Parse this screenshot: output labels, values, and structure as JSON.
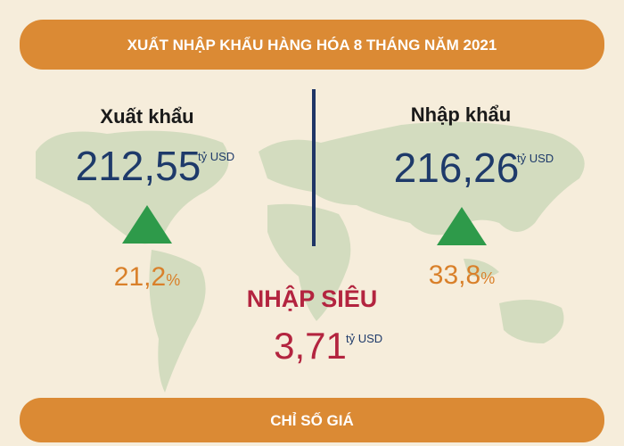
{
  "header": {
    "title": "XUẤT NHẬP KHẨU HÀNG HÓA  8 THÁNG NĂM 2021"
  },
  "export": {
    "label": "Xuất khẩu",
    "value": "212,55",
    "unit": "tỷ USD",
    "growth": "21,2",
    "growth_unit": "%"
  },
  "import": {
    "label": "Nhập khẩu",
    "value": "216,26",
    "unit": "tỷ USD",
    "growth": "33,8",
    "growth_unit": "%"
  },
  "deficit": {
    "label": "NHẬP SIÊU",
    "value": "3,71",
    "unit": "tỷ USD"
  },
  "footer": {
    "title": "CHỈ SỐ GIÁ"
  }
}
